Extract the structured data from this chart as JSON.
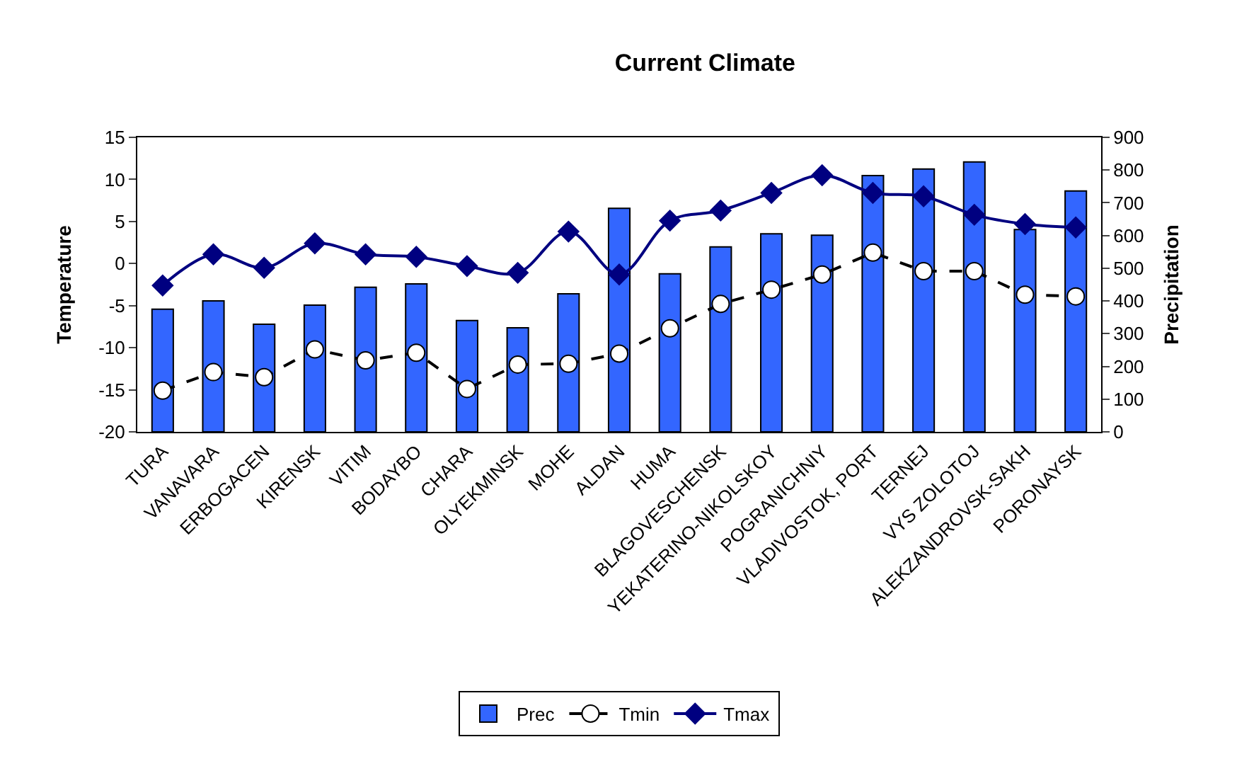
{
  "chart_data": {
    "type": "line",
    "title": "Current Climate",
    "ylabel": "Temperature",
    "y2label": "Precipitation",
    "categories": [
      "TURA",
      "VANAVARA",
      "ERBOGACEN",
      "KIRENSK",
      "VITIM",
      "BODAYBO",
      "CHARA",
      "OLYEKMINSK",
      "MOHE",
      "ALDAN",
      "HUMA",
      "BLAGOVESCHENSK",
      "YEKATERINO-NIKOLSKOY",
      "POGRANICHNIY",
      "VLADIVOSTOK, PORT",
      "TERNEJ",
      "VYS ZOLOTOJ",
      "ALEKZANDROVSK-SAKH",
      "PORONAYSK"
    ],
    "series": [
      {
        "name": "Prec",
        "type": "bar",
        "axis": "y2",
        "color": "#3366ff",
        "values": [
          375,
          400,
          329,
          387,
          442,
          452,
          340,
          318,
          422,
          683,
          483,
          565,
          605,
          601,
          783,
          803,
          825,
          618,
          736
        ]
      },
      {
        "name": "Tmin",
        "color": "#000000",
        "marker": "circle",
        "line_style": "dashed",
        "values": [
          -15.1,
          -12.9,
          -13.5,
          -10.2,
          -11.5,
          -10.6,
          -14.9,
          -12.0,
          -11.9,
          -10.7,
          -7.7,
          -4.8,
          -3.1,
          -1.3,
          1.3,
          -0.9,
          -0.9,
          -3.7,
          -3.9
        ]
      },
      {
        "name": "Tmax",
        "color": "#000080",
        "marker": "diamond",
        "line_style": "solid",
        "values": [
          -2.6,
          1.1,
          -0.5,
          2.4,
          1.1,
          0.8,
          -0.3,
          -1.1,
          3.8,
          -1.3,
          5.1,
          6.3,
          8.4,
          10.5,
          8.4,
          8.0,
          5.8,
          4.7,
          4.3
        ]
      }
    ],
    "ylim": [
      -20,
      15
    ],
    "yticks": [
      -20,
      -15,
      -10,
      -5,
      0,
      5,
      10,
      15
    ],
    "y2lim": [
      0,
      900
    ],
    "y2ticks": [
      0,
      100,
      200,
      300,
      400,
      500,
      600,
      700,
      800,
      900
    ],
    "grid": false,
    "legend": "bottom"
  }
}
